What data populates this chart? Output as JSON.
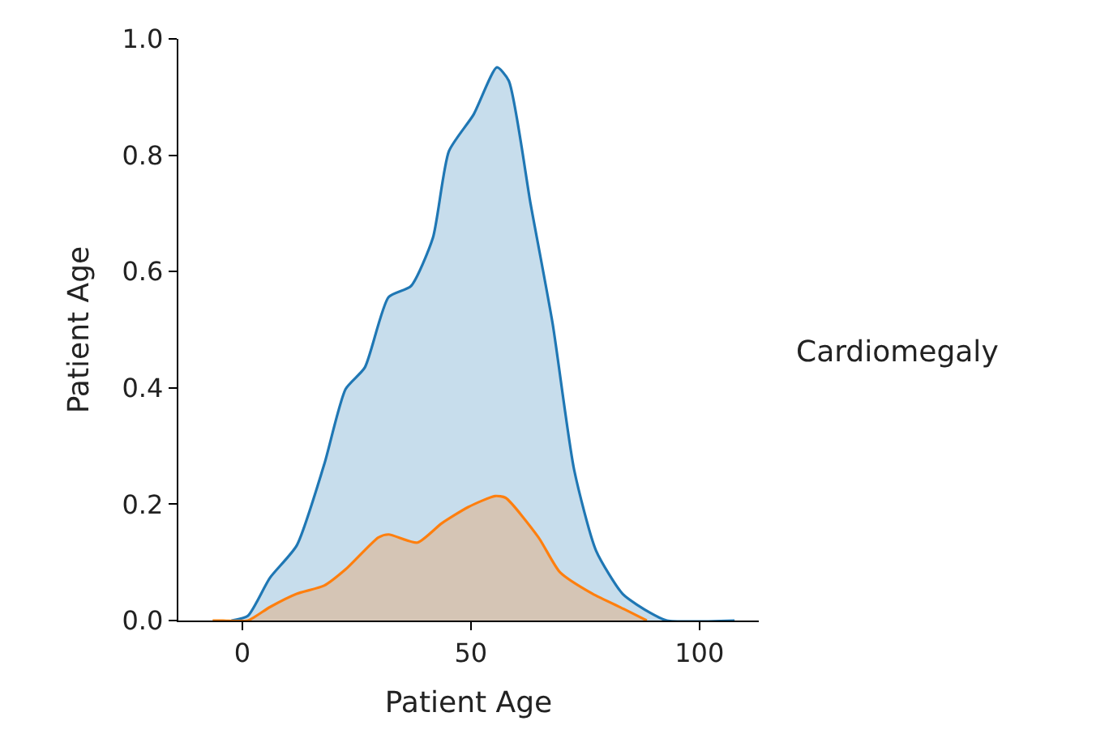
{
  "chart_data": {
    "type": "area",
    "xlabel": "Patient Age",
    "ylabel": "Patient Age",
    "legend_title": "Cardiomegaly",
    "xlim": [
      -14,
      113
    ],
    "xticks": [
      0,
      50,
      100
    ],
    "ylim": [
      0,
      1.0
    ],
    "yticks": [
      {
        "value": 0,
        "label": "0.0"
      },
      0.2,
      0.4,
      0.6,
      0.8,
      {
        "value": 1,
        "label": "1.0"
      }
    ],
    "series": [
      {
        "color": "#1f77b4",
        "x": [
          -2.4,
          1.2,
          6,
          11.9,
          17.9,
          22.6,
          26.8,
          32,
          36.9,
          41.7,
          45.2,
          50.6,
          55.7,
          58.3,
          63.1,
          67.9,
          72.6,
          77.4,
          83.3,
          89.3,
          92.9,
          107.7
        ],
        "values": [
          0,
          0.008,
          0.073,
          0.129,
          0.268,
          0.398,
          0.435,
          0.556,
          0.575,
          0.658,
          0.807,
          0.87,
          0.951,
          0.928,
          0.715,
          0.51,
          0.259,
          0.12,
          0.045,
          0.013,
          0,
          0
        ]
      },
      {
        "color": "#ff7f0e",
        "x": [
          -6.5,
          -4.2,
          1.2,
          6,
          11.9,
          17.9,
          22.6,
          29.8,
          32,
          38.3,
          43.6,
          49.4,
          55.3,
          57.6,
          64.8,
          69.5,
          76.6,
          83.7,
          88.5
        ],
        "values": [
          0,
          0,
          0,
          0.023,
          0.046,
          0.06,
          0.088,
          0.143,
          0.148,
          0.134,
          0.167,
          0.195,
          0.214,
          0.211,
          0.143,
          0.083,
          0.046,
          0.019,
          0
        ]
      }
    ]
  }
}
